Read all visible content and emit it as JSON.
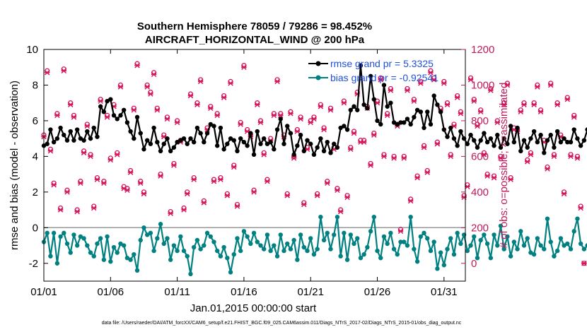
{
  "chart_data": {
    "type": "line",
    "title_line1": "Southern Hemisphere 78059 / 79286 = 98.452%",
    "title_line2": "AIRCRAFT_HORIZONTAL_WIND @ 200 hPa",
    "xlabel": "Jan.01,2015 00:00:00 start",
    "ylabel_left": "rmse and bias (model - observation)",
    "ylabel_right": "# of obs: o=possible; ×=assimilated",
    "footnote": "data file: /Users/raeder/DAI/ATM_forcXX/CAM6_setup/f.e21.FHIST_BGC.f09_025.CAM6assim.011/Diags_NTrS_2017-02/Diags_NTrS_2015-01/obs_diag_output.nc",
    "xlim": [
      1,
      32.6
    ],
    "ylim_left": [
      -3,
      10
    ],
    "ylim_right": [
      -100,
      1200
    ],
    "x_ticks": [
      1,
      6,
      11,
      16,
      21,
      26,
      31
    ],
    "x_tick_labels": [
      "01/01",
      "01/06",
      "01/11",
      "01/16",
      "01/21",
      "01/26",
      "01/31"
    ],
    "y_left_ticks": [
      -2,
      0,
      2,
      4,
      6,
      8,
      10
    ],
    "y_left_tick_labels": [
      "-2",
      "0",
      "2",
      "4",
      "6",
      "8",
      "10"
    ],
    "y_right_ticks": [
      0,
      200,
      400,
      600,
      800,
      1000,
      1200
    ],
    "y_right_tick_labels": [
      "0",
      "200",
      "400",
      "600",
      "800",
      "1000",
      "1200"
    ],
    "zero_line": 0,
    "x_start": 1.0,
    "x_step": 0.25,
    "colors": {
      "rmse": "#000000",
      "bias": "#008080",
      "obs": "#d6165d",
      "legend_text": "#1f4fe0",
      "right_axis": "#c2185b",
      "zero_line": "#999999"
    },
    "series": [
      {
        "name": "rmse grand pr = 5.3325",
        "values": [
          4.6,
          4.7,
          5.5,
          4.8,
          5.0,
          5.6,
          5.2,
          4.9,
          5.4,
          4.9,
          5.5,
          5.0,
          4.9,
          5.4,
          5.0,
          5.6,
          5.1,
          6.8,
          6.5,
          7.1,
          7.2,
          6.3,
          6.1,
          6.3,
          6.6,
          5.9,
          5.4,
          5.0,
          6.2,
          5.3,
          4.4,
          4.9,
          4.7,
          5.6,
          4.8,
          4.3,
          4.7,
          5.0,
          4.3,
          4.5,
          4.8,
          4.9,
          5.0,
          4.7,
          5.0,
          4.8,
          5.6,
          5.3,
          4.8,
          5.3,
          5.8,
          5.7,
          4.6,
          5.6,
          4.4,
          4.7,
          5.0,
          4.9,
          4.3,
          5.0,
          4.8,
          4.6,
          5.3,
          4.1,
          5.4,
          4.7,
          5.0,
          4.7,
          4.8,
          4.4,
          5.5,
          6.1,
          4.7,
          5.7,
          5.3,
          4.1,
          4.6,
          5.2,
          4.3,
          4.9,
          4.7,
          4.1,
          4.5,
          5.0,
          4.3,
          4.8,
          4.2,
          4.7,
          4.5,
          5.6,
          5.7,
          5.5,
          6.6,
          6.8,
          6.6,
          9.1,
          6.9,
          6.7,
          8.5,
          7.2,
          6.0,
          5.8,
          8.0,
          6.8,
          7.0,
          5.9,
          5.8,
          5.9,
          5.9,
          6.1,
          5.8,
          6.2,
          6.6,
          6.5,
          5.6,
          6.5,
          5.8,
          7.4,
          6.9,
          6.5,
          5.5,
          5.1,
          5.6,
          5.0,
          4.6,
          5.4,
          5.0,
          4.7,
          5.2,
          4.9,
          4.5,
          4.9,
          5.3,
          4.8,
          5.0,
          4.6,
          5.2,
          4.5,
          5.0,
          4.7,
          5.7,
          4.8,
          5.6,
          4.3,
          4.9,
          4.5,
          5.0,
          5.4,
          4.8,
          5.2,
          4.2,
          4.9,
          5.2,
          4.5,
          5.4,
          4.8,
          5.0,
          4.8,
          4.8,
          5.5,
          5.0,
          4.6,
          4.9,
          5.5,
          5.4,
          4.9,
          4.9
        ],
        "color": "#000000"
      },
      {
        "name": "bias grand pr = -0.92541",
        "values": [
          -0.8,
          -0.3,
          -1.6,
          -0.3,
          -2.0,
          -0.5,
          -0.3,
          -0.9,
          -1.4,
          -0.4,
          -1.0,
          -0.5,
          -0.6,
          -1.0,
          -1.4,
          -1.6,
          -0.9,
          -0.6,
          -1.8,
          -0.5,
          -1.9,
          -1.1,
          -1.4,
          -0.9,
          -1.0,
          -1.7,
          -1.8,
          -1.5,
          -2.4,
          -0.7,
          0.0,
          -0.4,
          -0.3,
          -1.3,
          -0.6,
          0.2,
          -0.9,
          -0.6,
          -1.8,
          -1.0,
          -1.3,
          -0.5,
          -1.3,
          -1.6,
          -2.6,
          -1.1,
          -0.7,
          -1.2,
          -1.0,
          -0.3,
          -0.5,
          -0.8,
          -1.3,
          -1.6,
          -1.1,
          -1.7,
          -2.5,
          -1.5,
          -0.6,
          -1.3,
          -0.2,
          -0.5,
          -0.9,
          -0.3,
          -0.8,
          -1.0,
          -1.2,
          -0.4,
          -1.3,
          -1.0,
          -1.6,
          -0.4,
          -1.3,
          -0.9,
          -1.2,
          -0.7,
          -1.8,
          -0.4,
          -1.1,
          -1.3,
          -0.6,
          -1.5,
          -1.2,
          0.6,
          -0.7,
          -0.3,
          -1.2,
          -0.4,
          0.6,
          -1.6,
          -0.3,
          -1.8,
          -0.4,
          -0.9,
          -0.6,
          -1.7,
          -1.5,
          -1.1,
          -0.2,
          0.6,
          -1.3,
          -1.7,
          -0.5,
          -0.9,
          -0.3,
          -1.2,
          -1.5,
          -0.8,
          -0.8,
          -1.0,
          0.6,
          -1.2,
          -1.9,
          -0.5,
          -0.3,
          -0.6,
          -1.3,
          -0.8,
          -2.3,
          -1.4,
          -2.1,
          -1.2,
          -0.6,
          -1.5,
          -0.3,
          -0.9,
          -0.4,
          -1.3,
          -1.0,
          -0.5,
          -1.7,
          -0.7,
          -0.4,
          -0.9,
          -1.7,
          -0.4,
          -1.0,
          0.1,
          -1.2,
          -0.5,
          -1.6,
          -0.8,
          -1.2,
          -0.2,
          -1.0,
          -0.6,
          -1.4,
          -1.5,
          -0.6,
          -1.0,
          -1.2,
          0.5,
          -0.8,
          -1.6,
          -1.3,
          -0.6,
          -1.0,
          -0.9,
          -1.2,
          -0.2,
          0.5,
          -0.9,
          -1.2,
          -1.0,
          -1.0,
          -1.0,
          -1.0
        ],
        "color": "#008080"
      },
      {
        "name": "obs possible",
        "marker": "circle",
        "values": [
          720,
          1080,
          640,
          450,
          840,
          310,
          1090,
          410,
          900,
          830,
          300,
          460,
          630,
          780,
          610,
          320,
          480,
          920,
          460,
          830,
          590,
          890,
          620,
          1000,
          430,
          420,
          520,
          870,
          1120,
          460,
          400,
          1000,
          960,
          1070,
          870,
          500,
          720,
          820,
          290,
          560,
          800,
          690,
          310,
          400,
          950,
          480,
          900,
          1030,
          350,
          760,
          880,
          470,
          840,
          480,
          940,
          390,
          1020,
          550,
          330,
          790,
          1110,
          750,
          720,
          410,
          900,
          800,
          620,
          470,
          700,
          840,
          1030,
          840,
          720,
          390,
          850,
          600,
          750,
          820,
          340,
          650,
          800,
          820,
          390,
          890,
          760,
          460,
          870,
          650,
          420,
          300,
          910,
          380,
          650,
          740,
          960,
          690,
          690,
          880,
          560,
          730,
          910,
          1040,
          610,
          840,
          980,
          600,
          780,
          190,
          600,
          980,
          360,
          920,
          490,
          1020,
          660,
          520,
          1080,
          1040,
          680,
          870,
          1020,
          900,
          610,
          780,
          940,
          850,
          380,
          440,
          1040,
          920,
          780,
          860,
          620,
          500,
          980,
          490,
          800,
          600,
          900,
          1010,
          480,
          760,
          750,
          860,
          900,
          580,
          620,
          900,
          1000,
          860,
          690,
          540,
          1010,
          610,
          900,
          720,
          400,
          930,
          610,
          830,
          600,
          320,
          0
        ],
        "color": "#d6165d"
      },
      {
        "name": "obs assimilated",
        "marker": "x",
        "values": [
          710,
          1070,
          630,
          440,
          830,
          300,
          1080,
          400,
          890,
          820,
          290,
          450,
          620,
          770,
          600,
          310,
          470,
          910,
          450,
          820,
          580,
          880,
          610,
          990,
          420,
          410,
          510,
          860,
          1110,
          450,
          390,
          990,
          950,
          1060,
          860,
          490,
          710,
          810,
          280,
          550,
          790,
          680,
          300,
          390,
          940,
          470,
          890,
          1020,
          340,
          750,
          870,
          460,
          830,
          470,
          930,
          380,
          1010,
          540,
          320,
          780,
          1100,
          740,
          710,
          400,
          890,
          790,
          610,
          460,
          690,
          830,
          1020,
          830,
          710,
          380,
          840,
          590,
          740,
          810,
          330,
          640,
          790,
          810,
          380,
          880,
          750,
          450,
          860,
          640,
          410,
          290,
          900,
          370,
          640,
          730,
          950,
          680,
          680,
          870,
          550,
          720,
          900,
          1030,
          600,
          830,
          970,
          590,
          770,
          180,
          590,
          970,
          350,
          910,
          480,
          1010,
          650,
          510,
          1070,
          1030,
          670,
          860,
          1010,
          890,
          600,
          770,
          930,
          840,
          370,
          430,
          1030,
          910,
          770,
          850,
          610,
          490,
          970,
          480,
          790,
          590,
          890,
          1000,
          470,
          750,
          740,
          850,
          890,
          570,
          610,
          890,
          990,
          850,
          680,
          530,
          1000,
          600,
          890,
          710,
          390,
          920,
          600,
          820,
          590,
          310,
          0
        ],
        "color": "#d6165d"
      }
    ]
  }
}
